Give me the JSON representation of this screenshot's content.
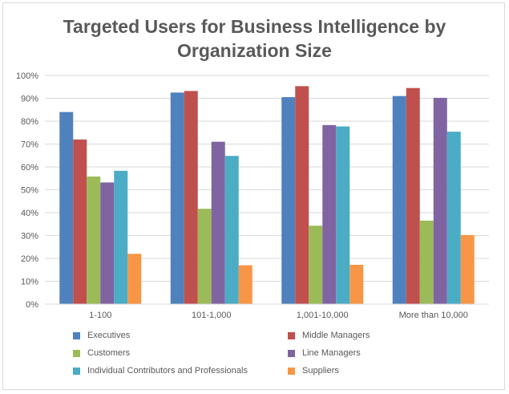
{
  "chart_data": {
    "type": "bar",
    "title_lines": [
      "Targeted Users for Business Intelligence by",
      "Organization Size"
    ],
    "categories": [
      "1-100",
      "101-1,000",
      "1,001-10,000",
      "More than 10,000"
    ],
    "ylim": [
      0,
      100
    ],
    "y_ticks": [
      "0%",
      "10%",
      "20%",
      "30%",
      "40%",
      "50%",
      "60%",
      "70%",
      "80%",
      "90%",
      "100%"
    ],
    "grid": true,
    "legend_position": "bottom",
    "series": [
      {
        "name": "Executives",
        "color": "#4f81bd",
        "values": [
          84,
          92.5,
          90.5,
          91
        ]
      },
      {
        "name": "Middle Managers",
        "color": "#c0504d",
        "values": [
          72,
          93.2,
          95.3,
          94.5
        ]
      },
      {
        "name": "Customers",
        "color": "#9bbb59",
        "values": [
          55.8,
          41.7,
          34.3,
          36.5
        ]
      },
      {
        "name": "Line Managers",
        "color": "#8064a2",
        "values": [
          53.2,
          71,
          78.3,
          90.2
        ]
      },
      {
        "name": "Individual Contributors and Professionals",
        "color": "#4bacc6",
        "values": [
          58.3,
          64.8,
          77.7,
          75.4
        ]
      },
      {
        "name": "Suppliers",
        "color": "#f79646",
        "values": [
          22,
          17,
          17.2,
          30.2
        ]
      }
    ]
  }
}
